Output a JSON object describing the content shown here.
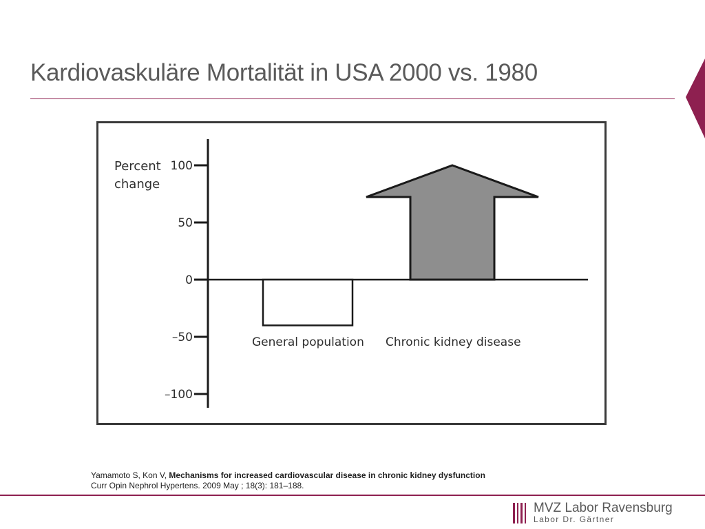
{
  "slide": {
    "title": "Kardiovaskuläre Mortalität in USA 2000 vs. 1980",
    "accent_color": "#8e2050"
  },
  "chart_data": {
    "type": "bar",
    "ylabel_line1": "Percent",
    "ylabel_line2": "change",
    "ylim": [
      -100,
      100
    ],
    "ticks": [
      {
        "value": 100,
        "label": "100"
      },
      {
        "value": 50,
        "label": "50"
      },
      {
        "value": 0,
        "label": "0"
      },
      {
        "value": -50,
        "label": "–50"
      },
      {
        "value": -100,
        "label": "–100"
      }
    ],
    "categories": [
      "General population",
      "Chronic kidney disease"
    ],
    "values": [
      -40,
      100
    ],
    "styles": [
      "open-bar",
      "up-arrow"
    ],
    "fill_colors": [
      "#ffffff",
      "#8e8e8e"
    ]
  },
  "citation": {
    "authors": "Yamamoto S, Kon V, ",
    "title": "Mechanisms for increased cardiovascular disease in chronic kidney dysfunction",
    "source": "Curr Opin Nephrol Hypertens. 2009 May ; 18(3): 181–188."
  },
  "logo": {
    "line1": "MVZ Labor Ravensburg",
    "line2": "Labor Dr. Gärtner"
  }
}
